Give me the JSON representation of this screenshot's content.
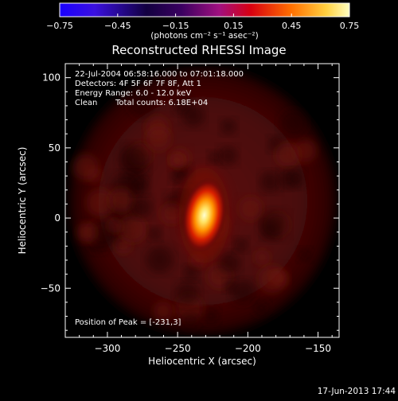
{
  "colorbar": {
    "ticks": [
      -0.75,
      -0.45,
      -0.15,
      0.15,
      0.45,
      0.75
    ],
    "tick_labels": [
      "−0.75",
      "−0.45",
      "−0.15",
      "0.15",
      "0.45",
      "0.75"
    ],
    "units_label": "(photons cm⁻² s⁻¹ asec⁻²)",
    "range": [
      -0.75,
      0.75
    ],
    "colors": [
      "#1a00ff",
      "#000000",
      "#7a1ea8",
      "#d80000",
      "#ff8c00",
      "#ffffa0"
    ]
  },
  "chart_data": {
    "type": "heatmap",
    "title": "Reconstructed RHESSI Image",
    "xlabel": "Heliocentric X (arcsec)",
    "ylabel": "Heliocentric Y (arcsec)",
    "xlim": [
      -330,
      -135
    ],
    "ylim": [
      -85,
      110
    ],
    "x_ticks": [
      -300,
      -250,
      -200,
      -150
    ],
    "x_tick_labels": [
      "−300",
      "−250",
      "−200",
      "−150"
    ],
    "y_ticks": [
      -50,
      0,
      50,
      100
    ],
    "y_tick_labels": [
      "−50",
      "0",
      "50",
      "100"
    ],
    "annotations": [
      "22-Jul-2004 06:58:16.000 to 07:01:18.000",
      "Detectors: 4F 5F 6F 7F 8F, Att 1",
      "Energy Range: 6.0 - 12.0 keV",
      "Clean",
      "Total counts: 6.18E+04"
    ],
    "peak_label": "Position of Peak = [-231,3]",
    "peak": {
      "x": -231,
      "y": 3,
      "value": 0.75
    },
    "background_disk": {
      "center_x": -232,
      "center_y": 12,
      "radius_arcsec": 95
    },
    "sources": [
      {
        "x": -231,
        "y": 2,
        "sigma_x_arcsec": 7,
        "sigma_y_arcsec": 18,
        "value": 0.75
      }
    ]
  },
  "footer": {
    "date": "17-Jun-2013 17:44"
  }
}
